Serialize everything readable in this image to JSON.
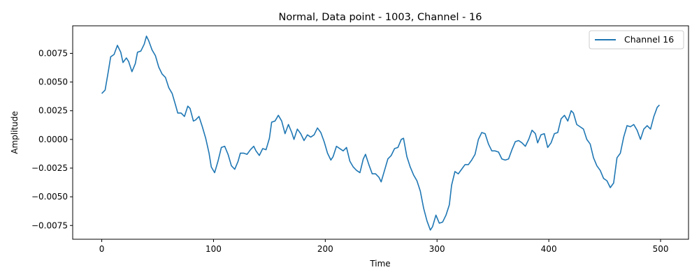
{
  "chart_data": {
    "type": "line",
    "title": "Normal, Data point - 1003, Channel - 16",
    "xlabel": "Time",
    "ylabel": "Amplitude",
    "xlim": [
      -26,
      525
    ],
    "ylim": [
      -0.0087,
      0.0099
    ],
    "xticks": [
      0,
      100,
      200,
      300,
      400,
      500
    ],
    "xtick_labels": [
      "0",
      "100",
      "200",
      "300",
      "400",
      "500"
    ],
    "yticks": [
      -0.0075,
      -0.005,
      -0.0025,
      0.0,
      0.0025,
      0.005,
      0.0075
    ],
    "ytick_labels": [
      "−0.0075",
      "−0.0050",
      "−0.0025",
      "0.0000",
      "0.0025",
      "0.0050",
      "0.0075"
    ],
    "grid": false,
    "legend_position": "top-right",
    "series": [
      {
        "name": "Channel 16",
        "color": "#1f77b4",
        "points": [
          [
            0,
            0.004
          ],
          [
            3,
            0.0043
          ],
          [
            6,
            0.006
          ],
          [
            8,
            0.0072
          ],
          [
            11,
            0.0074
          ],
          [
            14,
            0.0082
          ],
          [
            17,
            0.0076
          ],
          [
            19,
            0.0067
          ],
          [
            22,
            0.0071
          ],
          [
            24,
            0.0068
          ],
          [
            27,
            0.0059
          ],
          [
            30,
            0.0066
          ],
          [
            32,
            0.0076
          ],
          [
            35,
            0.0077
          ],
          [
            38,
            0.0083
          ],
          [
            40,
            0.009
          ],
          [
            42,
            0.0086
          ],
          [
            45,
            0.0078
          ],
          [
            48,
            0.0073
          ],
          [
            51,
            0.0063
          ],
          [
            54,
            0.0057
          ],
          [
            57,
            0.0054
          ],
          [
            60,
            0.0045
          ],
          [
            63,
            0.004
          ],
          [
            66,
            0.003
          ],
          [
            68,
            0.0023
          ],
          [
            71,
            0.0023
          ],
          [
            74,
            0.002
          ],
          [
            77,
            0.0029
          ],
          [
            79,
            0.0027
          ],
          [
            82,
            0.0016
          ],
          [
            84,
            0.0017
          ],
          [
            87,
            0.002
          ],
          [
            90,
            0.0011
          ],
          [
            93,
            0.0001
          ],
          [
            96,
            -0.0012
          ],
          [
            98,
            -0.0024
          ],
          [
            101,
            -0.0029
          ],
          [
            104,
            -0.0019
          ],
          [
            107,
            -0.0007
          ],
          [
            110,
            -0.0006
          ],
          [
            113,
            -0.0013
          ],
          [
            116,
            -0.0023
          ],
          [
            119,
            -0.0026
          ],
          [
            122,
            -0.0019
          ],
          [
            124,
            -0.0012
          ],
          [
            127,
            -0.0012
          ],
          [
            130,
            -0.0013
          ],
          [
            133,
            -0.0009
          ],
          [
            136,
            -0.0006
          ],
          [
            138,
            -0.001
          ],
          [
            141,
            -0.0014
          ],
          [
            144,
            -0.0008
          ],
          [
            147,
            -0.0009
          ],
          [
            150,
            0.0001
          ],
          [
            152,
            0.0015
          ],
          [
            155,
            0.0016
          ],
          [
            158,
            0.0021
          ],
          [
            161,
            0.0016
          ],
          [
            164,
            0.0005
          ],
          [
            167,
            0.0013
          ],
          [
            170,
            0.0006
          ],
          [
            172,
            0.0
          ],
          [
            175,
            0.0009
          ],
          [
            178,
            0.0005
          ],
          [
            181,
            -0.0001
          ],
          [
            184,
            0.0004
          ],
          [
            187,
            0.0002
          ],
          [
            190,
            0.0004
          ],
          [
            193,
            0.001
          ],
          [
            196,
            0.0006
          ],
          [
            199,
            -0.0002
          ],
          [
            202,
            -0.0012
          ],
          [
            205,
            -0.0018
          ],
          [
            207,
            -0.0015
          ],
          [
            210,
            -0.0006
          ],
          [
            213,
            -0.0008
          ],
          [
            216,
            -0.001
          ],
          [
            219,
            -0.0007
          ],
          [
            222,
            -0.0019
          ],
          [
            225,
            -0.0024
          ],
          [
            228,
            -0.0027
          ],
          [
            231,
            -0.0029
          ],
          [
            234,
            -0.0017
          ],
          [
            236,
            -0.0013
          ],
          [
            239,
            -0.0022
          ],
          [
            242,
            -0.003
          ],
          [
            245,
            -0.003
          ],
          [
            248,
            -0.0033
          ],
          [
            250,
            -0.0037
          ],
          [
            253,
            -0.0027
          ],
          [
            256,
            -0.0017
          ],
          [
            259,
            -0.0014
          ],
          [
            262,
            -0.0008
          ],
          [
            265,
            -0.0007
          ],
          [
            268,
            0.0
          ],
          [
            270,
            0.0001
          ],
          [
            273,
            -0.0015
          ],
          [
            276,
            -0.0024
          ],
          [
            279,
            -0.0031
          ],
          [
            282,
            -0.0036
          ],
          [
            285,
            -0.0045
          ],
          [
            288,
            -0.006
          ],
          [
            291,
            -0.0071
          ],
          [
            294,
            -0.0079
          ],
          [
            296,
            -0.0076
          ],
          [
            299,
            -0.0066
          ],
          [
            302,
            -0.0073
          ],
          [
            305,
            -0.0072
          ],
          [
            308,
            -0.0066
          ],
          [
            311,
            -0.0057
          ],
          [
            313,
            -0.004
          ],
          [
            316,
            -0.0028
          ],
          [
            319,
            -0.003
          ],
          [
            322,
            -0.0026
          ],
          [
            325,
            -0.0022
          ],
          [
            328,
            -0.0022
          ],
          [
            331,
            -0.0018
          ],
          [
            334,
            -0.0013
          ],
          [
            337,
            0.0
          ],
          [
            340,
            0.0006
          ],
          [
            343,
            0.0005
          ],
          [
            346,
            -0.0004
          ],
          [
            349,
            -0.001
          ],
          [
            352,
            -0.001
          ],
          [
            355,
            -0.0011
          ],
          [
            358,
            -0.0017
          ],
          [
            361,
            -0.0018
          ],
          [
            364,
            -0.0017
          ],
          [
            367,
            -0.0009
          ],
          [
            370,
            -0.0002
          ],
          [
            373,
            -0.0001
          ],
          [
            376,
            -0.0003
          ],
          [
            379,
            -0.0006
          ],
          [
            382,
            0.0
          ],
          [
            385,
            0.0008
          ],
          [
            388,
            0.0005
          ],
          [
            390,
            -0.0003
          ],
          [
            393,
            0.0004
          ],
          [
            396,
            0.0005
          ],
          [
            399,
            -0.0007
          ],
          [
            402,
            -0.0003
          ],
          [
            405,
            0.0005
          ],
          [
            408,
            0.0006
          ],
          [
            411,
            0.0018
          ],
          [
            414,
            0.0021
          ],
          [
            417,
            0.0016
          ],
          [
            420,
            0.0025
          ],
          [
            422,
            0.0023
          ],
          [
            425,
            0.0013
          ],
          [
            428,
            0.0011
          ],
          [
            431,
            0.0009
          ],
          [
            434,
            0.0
          ],
          [
            437,
            -0.0004
          ],
          [
            440,
            -0.0016
          ],
          [
            443,
            -0.0023
          ],
          [
            446,
            -0.0027
          ],
          [
            449,
            -0.0034
          ],
          [
            452,
            -0.0036
          ],
          [
            455,
            -0.0042
          ],
          [
            458,
            -0.0038
          ],
          [
            461,
            -0.0016
          ],
          [
            464,
            -0.0012
          ],
          [
            467,
            0.0002
          ],
          [
            470,
            0.0012
          ],
          [
            473,
            0.0011
          ],
          [
            476,
            0.0013
          ],
          [
            479,
            0.0008
          ],
          [
            482,
            0.0
          ],
          [
            485,
            0.0009
          ],
          [
            488,
            0.0012
          ],
          [
            491,
            0.0009
          ],
          [
            494,
            0.002
          ],
          [
            497,
            0.0028
          ],
          [
            499,
            0.003
          ]
        ]
      }
    ]
  }
}
